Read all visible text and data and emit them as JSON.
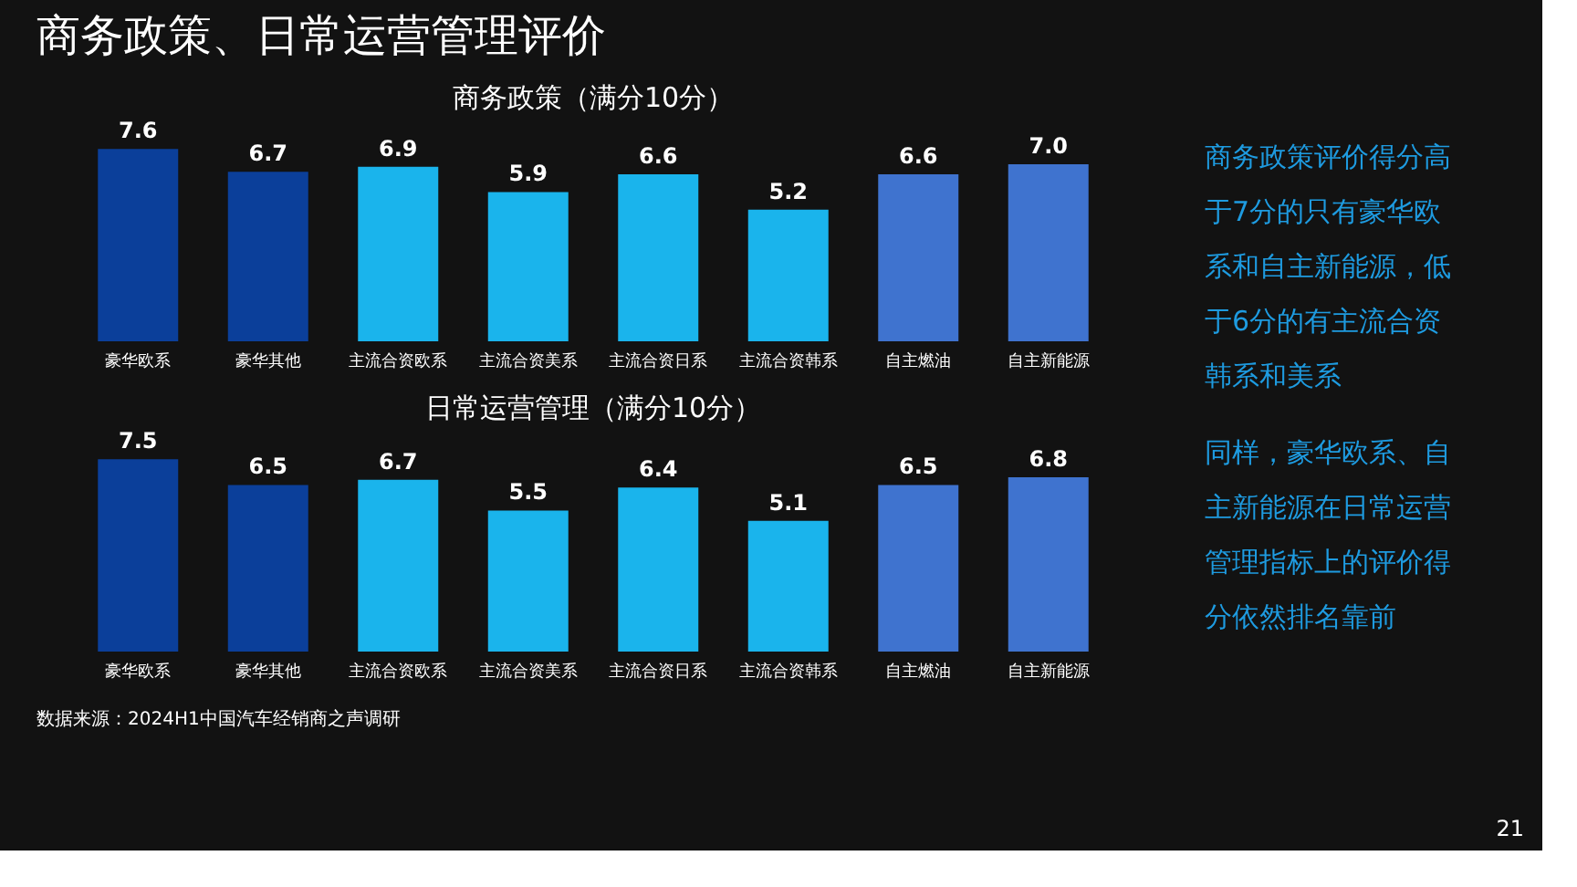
{
  "chart_data": [
    {
      "type": "bar",
      "title": "商务政策（满分10分）",
      "categories": [
        "豪华欧系",
        "豪华其他",
        "主流合资欧系",
        "主流合资美系",
        "主流合资日系",
        "主流合资韩系",
        "自主燃油",
        "自主新能源"
      ],
      "values": [
        7.6,
        6.7,
        6.9,
        5.9,
        6.6,
        5.2,
        6.6,
        7.0
      ],
      "value_labels": [
        "7.6",
        "6.7",
        "6.9",
        "5.9",
        "6.6",
        "5.2",
        "6.6",
        "7.0"
      ],
      "colors": [
        "#0b3f9a",
        "#0b3f9a",
        "#1ab4ec",
        "#1ab4ec",
        "#1ab4ec",
        "#1ab4ec",
        "#3f73cf",
        "#3f73cf"
      ],
      "data_labels": true
    },
    {
      "type": "bar",
      "title": "日常运营管理（满分10分）",
      "categories": [
        "豪华欧系",
        "豪华其他",
        "主流合资欧系",
        "主流合资美系",
        "主流合资日系",
        "主流合资韩系",
        "自主燃油",
        "自主新能源"
      ],
      "values": [
        7.5,
        6.5,
        6.7,
        5.5,
        6.4,
        5.1,
        6.5,
        6.8
      ],
      "colors": [
        "#0b3f9a",
        "#0b3f9a",
        "#1ab4ec",
        "#1ab4ec",
        "#1ab4ec",
        "#1ab4ec",
        "#3f73cf",
        "#3f73cf"
      ],
      "value_labels": [
        "7.5",
        "6.5",
        "6.7",
        "5.5",
        "6.4",
        "5.1",
        "6.5",
        "6.8"
      ],
      "data_labels": true,
      "annotations": [
        "数据来源：2024H1中国汽车经销商之声调研"
      ]
    },
    {
      "type": "other",
      "title": "商务政策、日常运营管理评价",
      "annotations": [
        "商务政策评价得分高于7分的只有豪华欧系和自主新能源，低于6分的有主流合资韩系和美系",
        "同样，豪华欧系、自主新能源在日常运营管理指标上的评价得分依然排名靠前",
        "21"
      ]
    }
  ]
}
